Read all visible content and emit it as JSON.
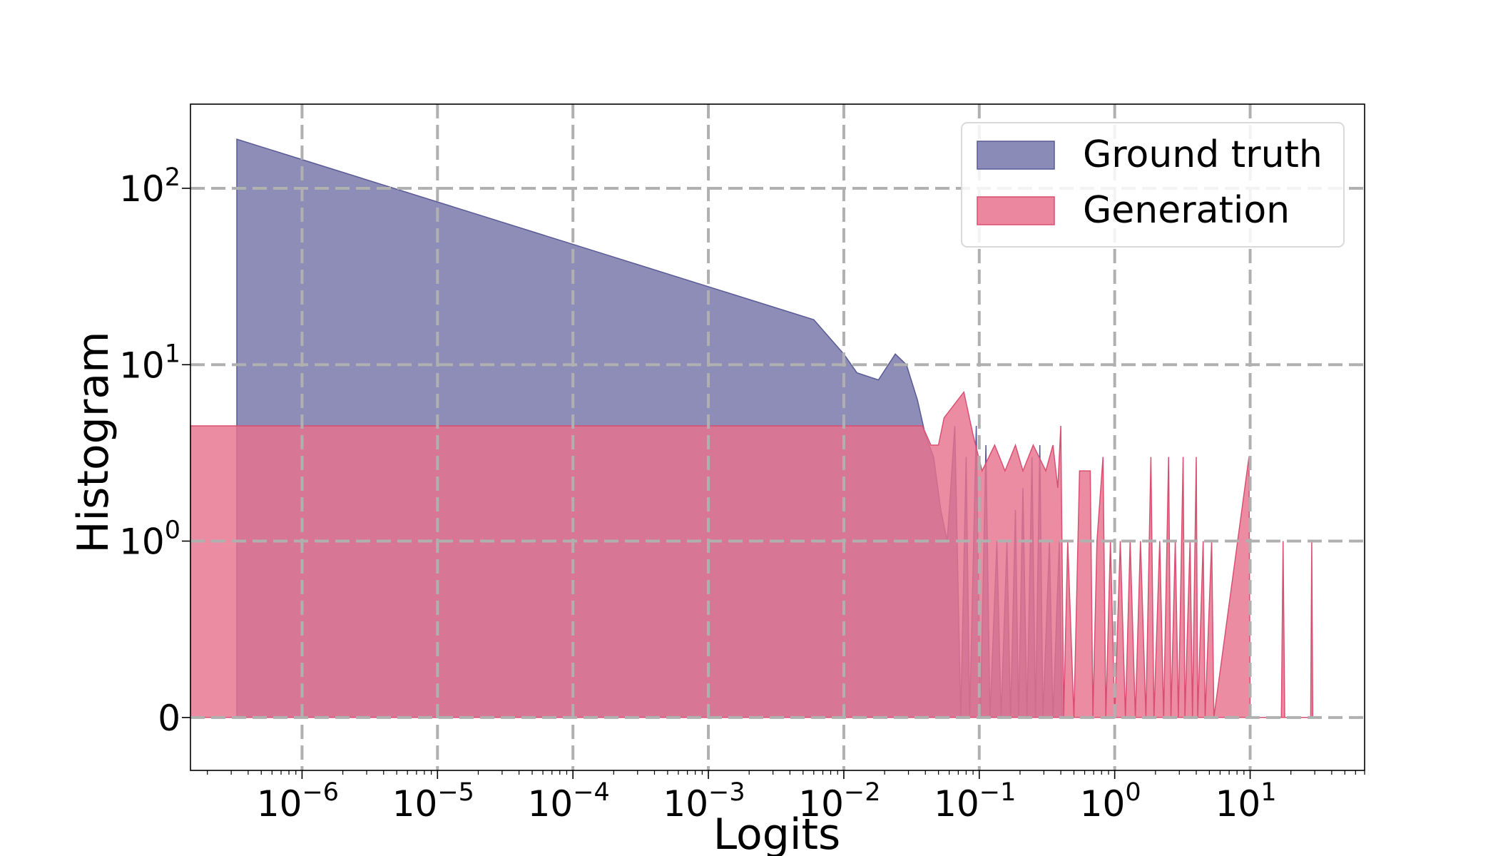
{
  "chart_data": {
    "type": "area",
    "title": "",
    "xlabel": "Logits",
    "ylabel": "Histogram",
    "xscale": "log",
    "yscale": "symlog",
    "xlim": [
      1.5e-07,
      70
    ],
    "ylim": [
      -0.3,
      300
    ],
    "grid": true,
    "legend_position": "top-right",
    "x_ticks": [
      {
        "value": 1e-06,
        "base": "10",
        "exp": "−6"
      },
      {
        "value": 1e-05,
        "base": "10",
        "exp": "−5"
      },
      {
        "value": 0.0001,
        "base": "10",
        "exp": "−4"
      },
      {
        "value": 0.001,
        "base": "10",
        "exp": "−3"
      },
      {
        "value": 0.01,
        "base": "10",
        "exp": "−2"
      },
      {
        "value": 0.1,
        "base": "10",
        "exp": "−1"
      },
      {
        "value": 1,
        "base": "10",
        "exp": "0"
      },
      {
        "value": 10,
        "base": "10",
        "exp": "1"
      }
    ],
    "y_ticks": [
      {
        "value": 0,
        "base": "0",
        "exp": ""
      },
      {
        "value": 1,
        "base": "10",
        "exp": "0"
      },
      {
        "value": 10,
        "base": "10",
        "exp": "1"
      },
      {
        "value": 100,
        "base": "10",
        "exp": "2"
      }
    ],
    "series": [
      {
        "name": "Ground truth",
        "color": "#8b8bb7",
        "edge_color": "#5a5a96",
        "points": [
          [
            3.3e-07,
            0
          ],
          [
            3.3e-07,
            190
          ],
          [
            0.006,
            18
          ],
          [
            0.01,
            11.5
          ],
          [
            0.0125,
            9
          ],
          [
            0.018,
            8.2
          ],
          [
            0.024,
            11.5
          ],
          [
            0.029,
            10
          ],
          [
            0.035,
            6.3
          ],
          [
            0.04,
            4
          ],
          [
            0.046,
            3
          ],
          [
            0.052,
            1.5
          ],
          [
            0.058,
            1
          ],
          [
            0.066,
            4.5
          ],
          [
            0.073,
            0
          ],
          [
            0.08,
            3
          ],
          [
            0.085,
            0
          ],
          [
            0.095,
            4.5
          ],
          [
            0.102,
            0
          ],
          [
            0.112,
            3.5
          ],
          [
            0.12,
            0
          ],
          [
            0.135,
            1
          ],
          [
            0.145,
            0
          ],
          [
            0.16,
            1
          ],
          [
            0.17,
            0
          ],
          [
            0.185,
            1.5
          ],
          [
            0.195,
            0
          ],
          [
            0.21,
            2
          ],
          [
            0.225,
            0
          ],
          [
            0.245,
            3
          ],
          [
            0.26,
            0
          ],
          [
            0.28,
            3.5
          ],
          [
            0.295,
            0
          ],
          [
            0.33,
            1
          ],
          [
            0.35,
            0
          ],
          [
            0.39,
            1
          ],
          [
            0.41,
            0
          ]
        ]
      },
      {
        "name": "Generation",
        "color": "#e8738e",
        "edge_color": "#d94f72",
        "points": [
          [
            1.5e-07,
            0
          ],
          [
            1.5e-07,
            4.5
          ],
          [
            0.038,
            4.5
          ],
          [
            0.044,
            3.5
          ],
          [
            0.05,
            3.5
          ],
          [
            0.055,
            5
          ],
          [
            0.077,
            7
          ],
          [
            0.09,
            4
          ],
          [
            0.105,
            2.5
          ],
          [
            0.13,
            3.5
          ],
          [
            0.155,
            2.5
          ],
          [
            0.185,
            3.5
          ],
          [
            0.21,
            2.5
          ],
          [
            0.25,
            3.5
          ],
          [
            0.31,
            2.5
          ],
          [
            0.35,
            3.5
          ],
          [
            0.38,
            2
          ],
          [
            0.4,
            4.5
          ],
          [
            0.42,
            0
          ],
          [
            0.45,
            1
          ],
          [
            0.5,
            0
          ],
          [
            0.55,
            2.5
          ],
          [
            0.66,
            2.5
          ],
          [
            0.69,
            0
          ],
          [
            0.74,
            1
          ],
          [
            0.82,
            3
          ],
          [
            0.86,
            0
          ],
          [
            0.93,
            1
          ],
          [
            1.0,
            0
          ],
          [
            1.1,
            1
          ],
          [
            1.2,
            0
          ],
          [
            1.3,
            1
          ],
          [
            1.42,
            0
          ],
          [
            1.55,
            1
          ],
          [
            1.7,
            0
          ],
          [
            1.85,
            3
          ],
          [
            1.95,
            0
          ],
          [
            2.15,
            1
          ],
          [
            2.3,
            0
          ],
          [
            2.5,
            3
          ],
          [
            2.6,
            0
          ],
          [
            2.8,
            1
          ],
          [
            2.95,
            0
          ],
          [
            3.2,
            3
          ],
          [
            3.3,
            0
          ],
          [
            3.6,
            1
          ],
          [
            3.75,
            0
          ],
          [
            4.0,
            3
          ],
          [
            4.1,
            0
          ],
          [
            4.5,
            1
          ],
          [
            4.65,
            0
          ],
          [
            5.2,
            1
          ],
          [
            5.4,
            0
          ],
          [
            9.8,
            3
          ],
          [
            10.0,
            0
          ],
          [
            17.0,
            0
          ],
          [
            17.5,
            1
          ],
          [
            18.0,
            0
          ],
          [
            28.0,
            0
          ],
          [
            28.5,
            1
          ],
          [
            29.0,
            0
          ]
        ]
      }
    ]
  }
}
